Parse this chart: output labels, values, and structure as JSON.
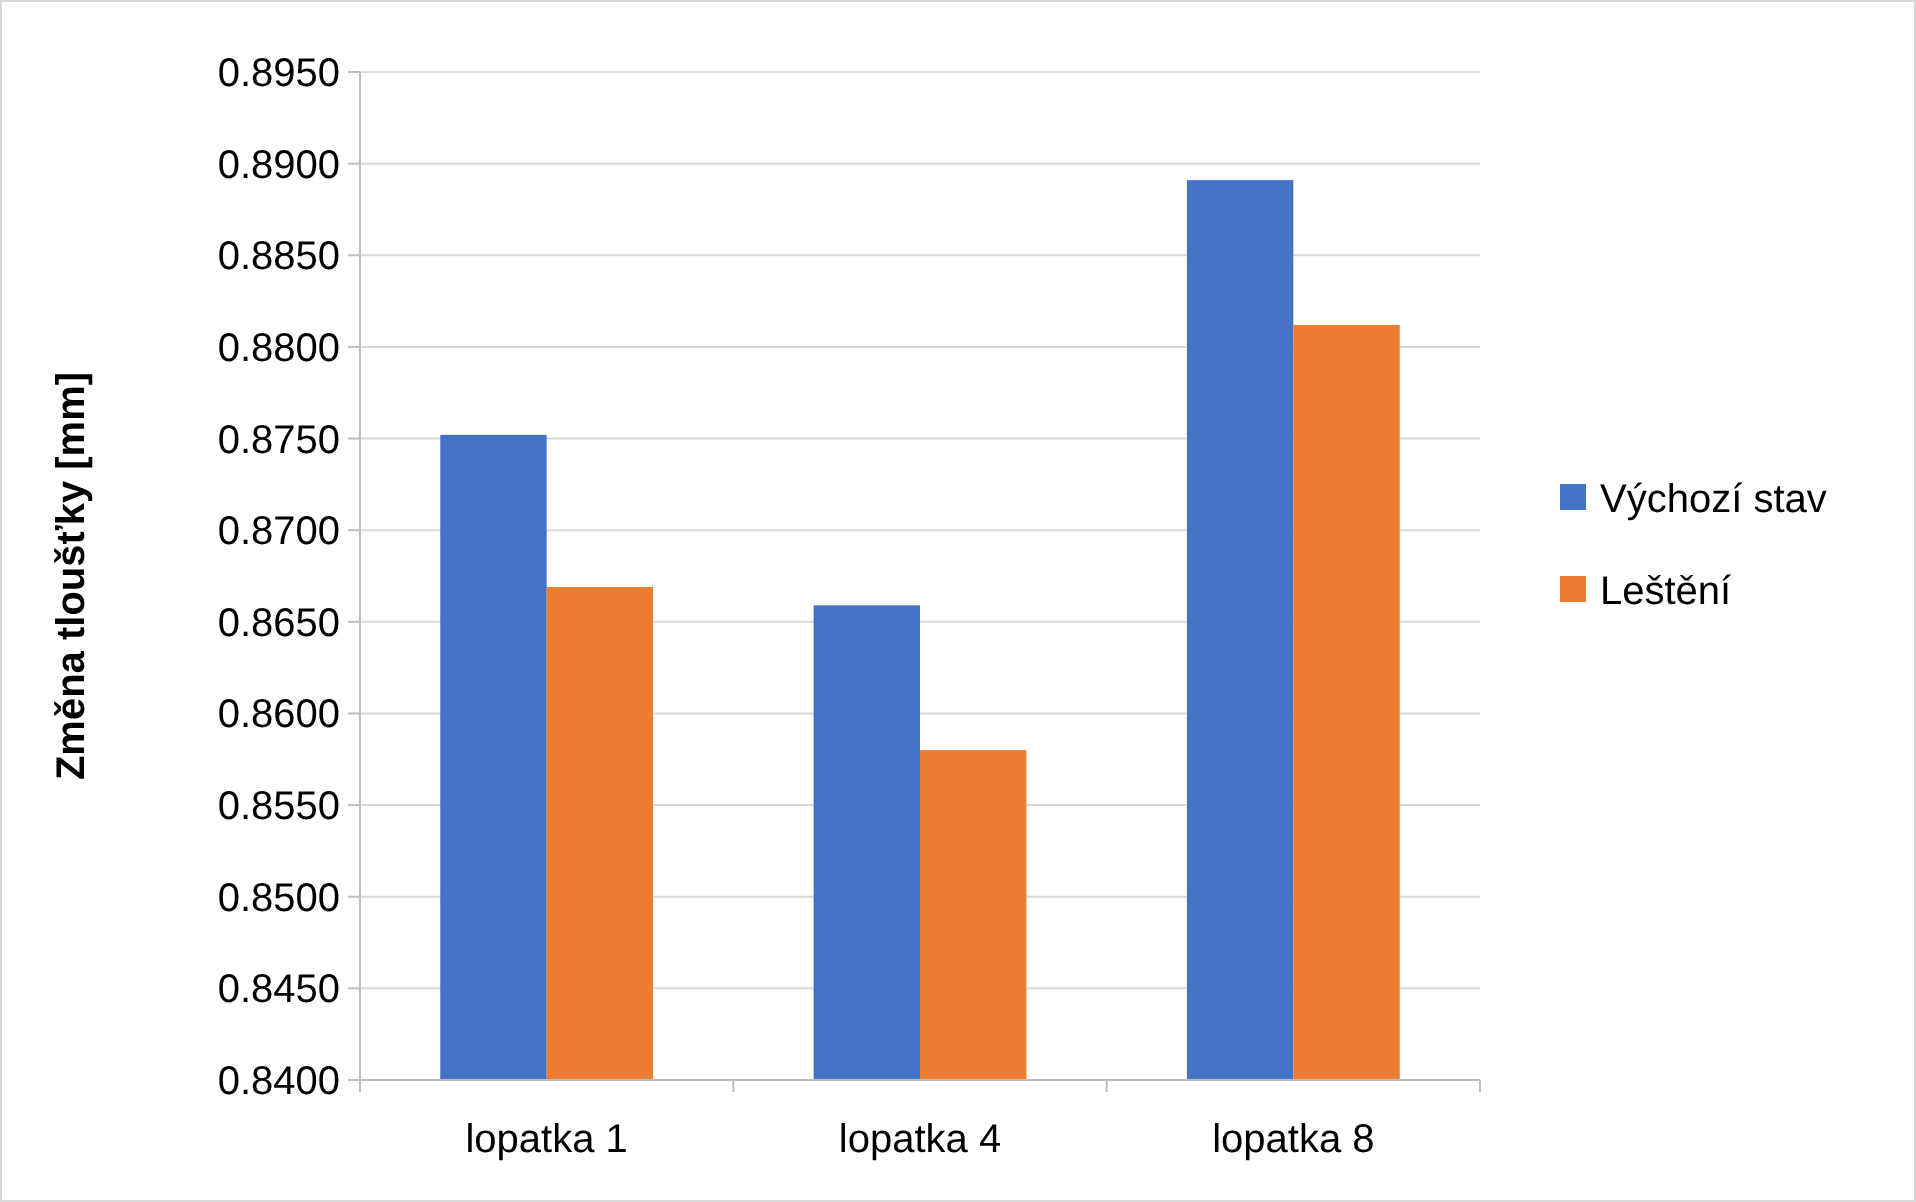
{
  "chart_data": {
    "type": "bar",
    "ylabel": "Změna tloušťky [mm]",
    "categories": [
      "lopatka 1",
      "lopatka 4",
      "lopatka 8"
    ],
    "series": [
      {
        "name": "Výchozí stav",
        "color": "#4472c4",
        "values": [
          0.8752,
          0.8659,
          0.8891
        ]
      },
      {
        "name": "Leštění",
        "color": "#ed7d31",
        "values": [
          0.8669,
          0.858,
          0.8812
        ]
      }
    ],
    "ylim": [
      0.84,
      0.895
    ],
    "yticks": [
      {
        "value": 0.84,
        "label": "0.8400"
      },
      {
        "value": 0.845,
        "label": "0.8450"
      },
      {
        "value": 0.85,
        "label": "0.8500"
      },
      {
        "value": 0.855,
        "label": "0.8550"
      },
      {
        "value": 0.86,
        "label": "0.8600"
      },
      {
        "value": 0.865,
        "label": "0.8650"
      },
      {
        "value": 0.87,
        "label": "0.8700"
      },
      {
        "value": 0.875,
        "label": "0.8750"
      },
      {
        "value": 0.88,
        "label": "0.8800"
      },
      {
        "value": 0.885,
        "label": "0.8850"
      },
      {
        "value": 0.89,
        "label": "0.8900"
      },
      {
        "value": 0.895,
        "label": "0.8950"
      }
    ],
    "grid": "y",
    "legend": "right"
  }
}
